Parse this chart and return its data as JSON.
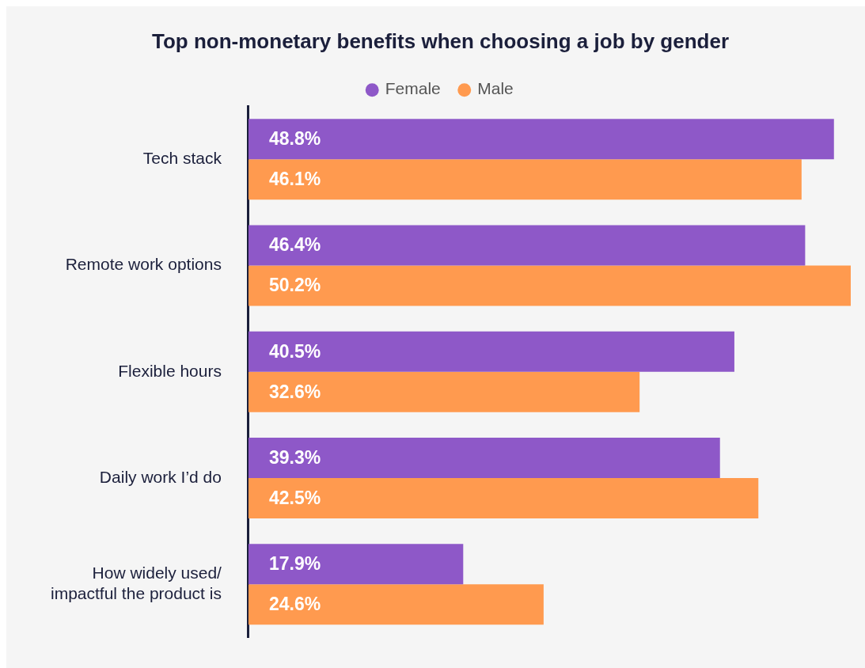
{
  "chart_data": {
    "type": "bar",
    "orientation": "horizontal",
    "title": "Top non-monetary benefits when choosing a job by gender",
    "categories": [
      "Tech stack",
      "Remote work options",
      "Flexible hours",
      "Daily work I’d do",
      "How widely used/ impactful the product is"
    ],
    "series": [
      {
        "name": "Female",
        "color": "#8e58c8",
        "values": [
          48.8,
          46.4,
          40.5,
          39.3,
          17.9
        ],
        "value_labels": [
          "48.8%",
          "46.4%",
          "40.5%",
          "39.3%",
          "17.9%"
        ]
      },
      {
        "name": "Male",
        "color": "#ff9a4f",
        "values": [
          46.1,
          50.2,
          32.6,
          42.5,
          24.6
        ],
        "value_labels": [
          "46.1%",
          "50.2%",
          "32.6%",
          "42.5%",
          "24.6%"
        ]
      }
    ],
    "legend": "top"
  }
}
